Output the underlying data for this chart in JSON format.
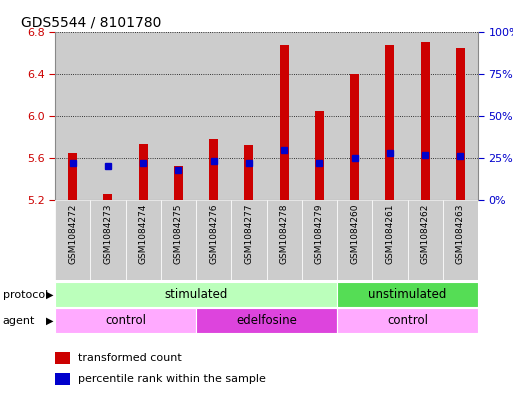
{
  "title": "GDS5544 / 8101780",
  "samples": [
    "GSM1084272",
    "GSM1084273",
    "GSM1084274",
    "GSM1084275",
    "GSM1084276",
    "GSM1084277",
    "GSM1084278",
    "GSM1084279",
    "GSM1084260",
    "GSM1084261",
    "GSM1084262",
    "GSM1084263"
  ],
  "bar_tops": [
    5.65,
    5.26,
    5.73,
    5.52,
    5.78,
    5.72,
    6.68,
    6.05,
    6.4,
    6.68,
    6.7,
    6.65
  ],
  "bar_bottom": 5.2,
  "blue_percentile": [
    22,
    20,
    22,
    18,
    23,
    22,
    30,
    22,
    25,
    28,
    27,
    26
  ],
  "ylim": [
    5.2,
    6.8
  ],
  "yticks_left": [
    5.2,
    5.6,
    6.0,
    6.4,
    6.8
  ],
  "yticks_right": [
    0,
    25,
    50,
    75,
    100
  ],
  "bar_color": "#cc0000",
  "blue_color": "#0000cc",
  "col_bg_color": "#cccccc",
  "protocol_stim_color": "#bbffbb",
  "protocol_unstim_color": "#55dd55",
  "agent_control_color": "#ffaaff",
  "agent_edelfosine_color": "#dd44dd",
  "legend_red_label": "transformed count",
  "legend_blue_label": "percentile rank within the sample",
  "left_tick_color": "#cc0000",
  "right_tick_color": "#0000cc"
}
